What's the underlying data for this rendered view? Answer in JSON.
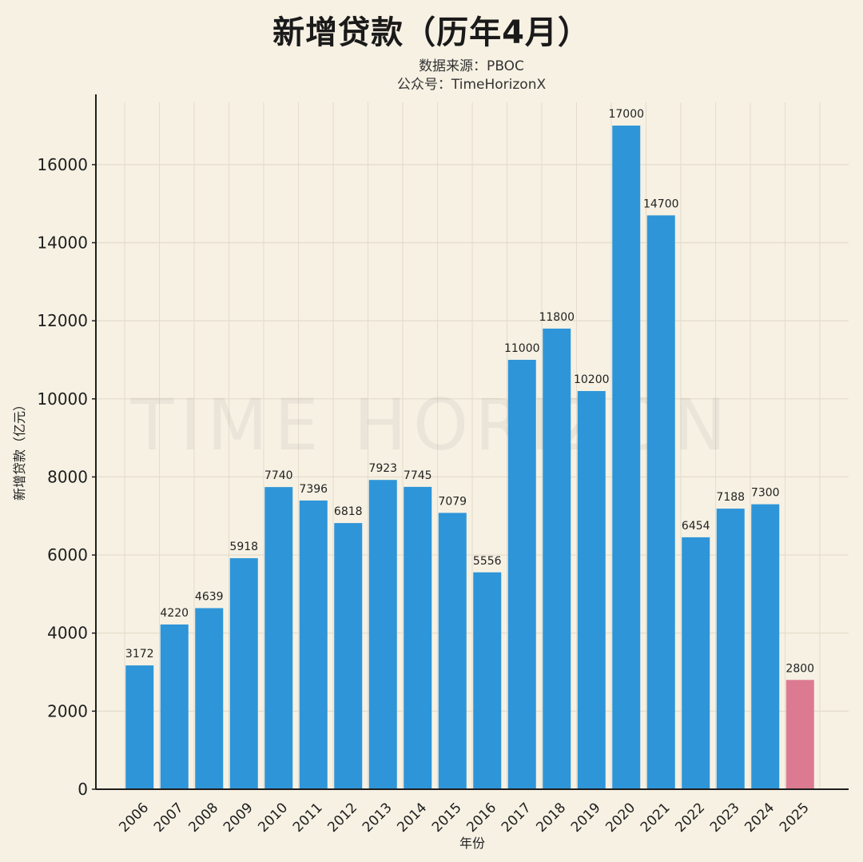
{
  "header": {
    "title": "新增贷款（历年4月）",
    "source": "数据来源：PBOC",
    "account": "公众号：TimeHorizonX"
  },
  "watermark": "TIME HORIZON",
  "colors": {
    "bar": "#2e95d8",
    "highlight_bar": "#dc7a92",
    "grid": "#e4dccb",
    "axis": "#1e1e1e",
    "background": "#f6f1e3"
  },
  "chart_data": {
    "type": "bar",
    "title": "新增贷款（历年4月）",
    "xlabel": "年份",
    "ylabel": "新增贷款（亿元）",
    "ylim": [
      0,
      17800
    ],
    "yticks": [
      0,
      2000,
      4000,
      6000,
      8000,
      10000,
      12000,
      14000,
      16000
    ],
    "grid": true,
    "categories": [
      "2006",
      "2007",
      "2008",
      "2009",
      "2010",
      "2011",
      "2012",
      "2013",
      "2014",
      "2015",
      "2016",
      "2017",
      "2018",
      "2019",
      "2020",
      "2021",
      "2022",
      "2023",
      "2024",
      "2025"
    ],
    "values": [
      3172,
      4220,
      4639,
      5918,
      7740,
      7396,
      6818,
      7923,
      7745,
      7079,
      5556,
      11000,
      11800,
      10200,
      17000,
      14700,
      6454,
      7188,
      7300,
      2800
    ],
    "highlight_category": "2025"
  }
}
